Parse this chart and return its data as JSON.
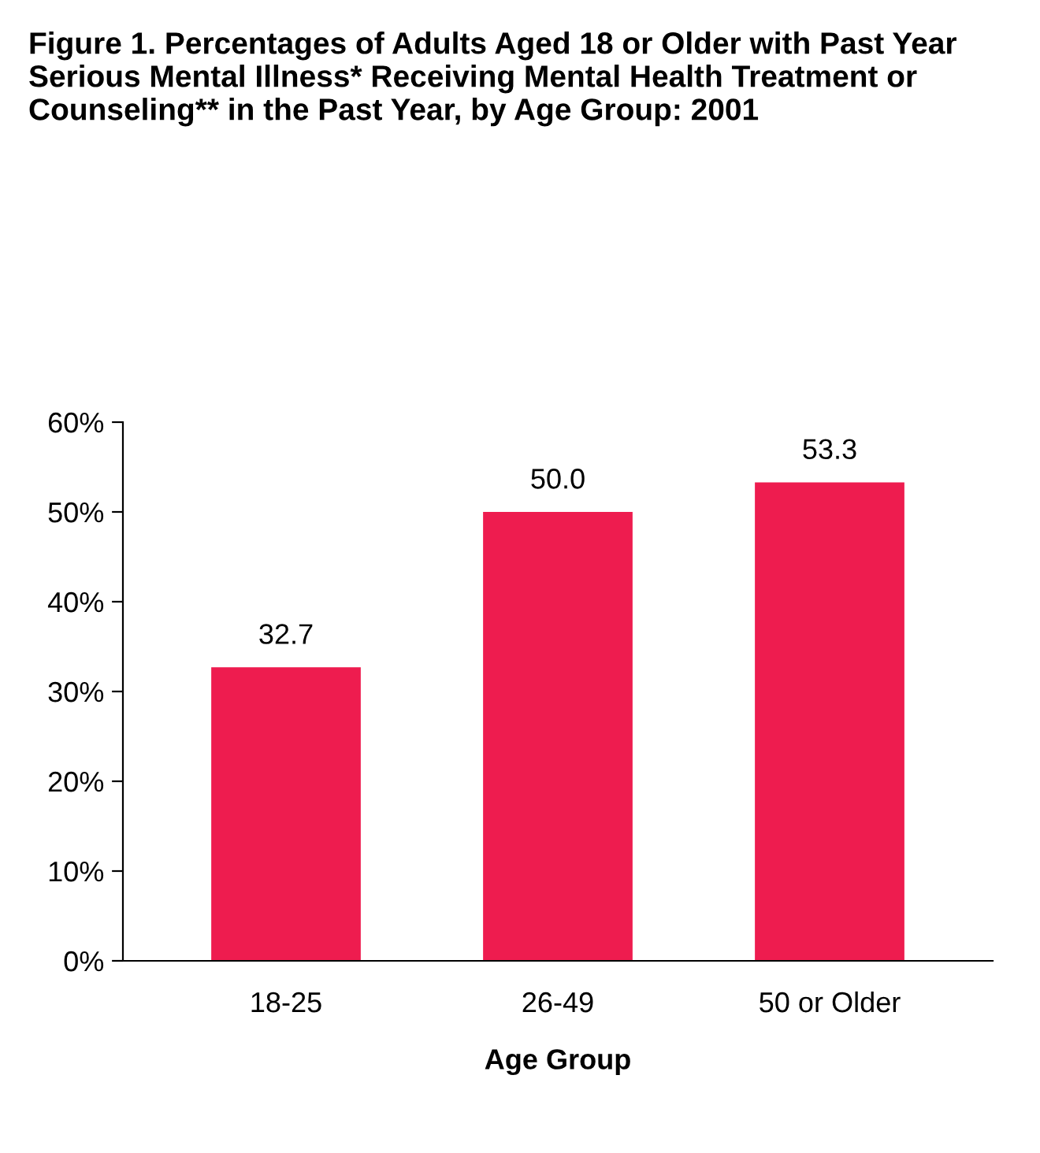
{
  "chart_data": {
    "type": "bar",
    "title": "Figure 1. Percentages of Adults Aged 18 or Older with Past Year Serious Mental Illness* Receiving Mental Health Treatment or Counseling** in the Past Year, by Age Group: 2001",
    "xlabel": "Age Group",
    "categories": [
      "18-25",
      "26-49",
      "50 or Older"
    ],
    "values": [
      32.7,
      50.0,
      53.3
    ],
    "value_labels": [
      "32.7",
      "50.0",
      "53.3"
    ],
    "color": "#ee1c4f",
    "ylim": [
      0,
      60
    ],
    "yticks": [
      {
        "value": 0,
        "label": "0%"
      },
      {
        "value": 10,
        "label": "10%"
      },
      {
        "value": 20,
        "label": "20%"
      },
      {
        "value": 30,
        "label": "30%"
      },
      {
        "value": 40,
        "label": "40%"
      },
      {
        "value": 50,
        "label": "50%"
      },
      {
        "value": 60,
        "label": "60%"
      }
    ],
    "grid": false
  }
}
